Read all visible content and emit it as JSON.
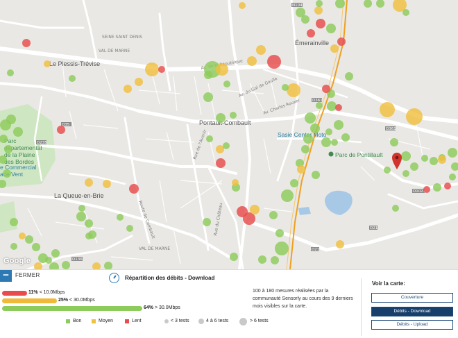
{
  "map": {
    "attribution": "Google",
    "places": [
      {
        "id": "le-plessis",
        "label": "Le Plessis-Trévise"
      },
      {
        "id": "pontault",
        "label": "Pontault-Combault"
      },
      {
        "id": "emerainville",
        "label": "Émerainville"
      },
      {
        "id": "sasie",
        "label": "Sasie Center Moto"
      },
      {
        "id": "parc-pontillault",
        "label": "Parc de Pontillault"
      },
      {
        "id": "queue",
        "label": "La Queue-en-Brie"
      },
      {
        "id": "parc-dep",
        "label": [
          "Parc",
          "départemental",
          "de la Plaine",
          "des Bordes"
        ]
      },
      {
        "id": "centre",
        "label": [
          "e Commercial",
          "ace Vent"
        ]
      }
    ],
    "roads": [
      "Av. du Gal de Gaulle",
      "Av. Charles Rouxel",
      "Rue de l'Avenir",
      "Route de Combault",
      "Rue du Château",
      "Av. de la République",
      "D361",
      "D21",
      "D35",
      "D136",
      "D235",
      "D1021",
      "D51",
      "VAL DE MARNE",
      "SEINE SAINT DENIS"
    ],
    "pin_color": "#d0342c"
  },
  "panel": {
    "close_label": "FERMER",
    "title": "Répartition des débits - Download",
    "bars": [
      {
        "percent": "11%",
        "label": "< 10.0Mbps",
        "color": "#e84c4c"
      },
      {
        "percent": "25%",
        "label": "< 30.0Mbps",
        "color": "#f0b93a"
      },
      {
        "percent": "64%",
        "label": "> 30.0Mbps",
        "color": "#8dcb5c"
      }
    ],
    "description": "100 à 180 mesures réalisées par la communauté Sensorly au cours des 9 derniers mois visibles sur la carte.",
    "legend": {
      "good": "Bon",
      "medium": "Moyen",
      "slow": "Lent",
      "tests_small": "< 3 tests",
      "tests_mid": "4 à 6 tests",
      "tests_big": "> 6 tests"
    },
    "colors": {
      "good": "#8dcb5c",
      "medium": "#f0c040",
      "slow": "#e84c4c"
    }
  },
  "side": {
    "title": "Voir la carte:",
    "buttons": [
      "Couverture",
      "Débits - Download",
      "Débits - Upload"
    ]
  }
}
